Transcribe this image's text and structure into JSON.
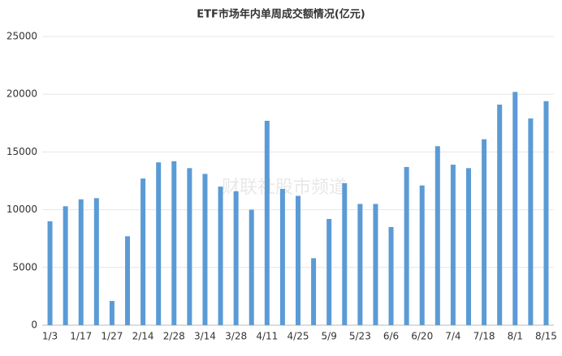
{
  "chart_data": {
    "type": "bar",
    "title": "ETF市场年内单周成交额情况(亿元)",
    "watermark": "财联社股市频道",
    "categories": [
      "1/3",
      null,
      "1/17",
      null,
      "1/27",
      null,
      "2/14",
      null,
      "2/28",
      null,
      "3/14",
      null,
      "3/28",
      null,
      "4/11",
      null,
      "4/25",
      null,
      "5/9",
      null,
      "5/23",
      null,
      "6/6",
      null,
      "6/20",
      null,
      "7/4",
      null,
      "7/18",
      null,
      "8/1",
      null,
      "8/15"
    ],
    "values": [
      9000,
      10300,
      10900,
      11000,
      2100,
      7700,
      12700,
      14100,
      14200,
      13600,
      13100,
      12000,
      11600,
      10000,
      17700,
      11800,
      11200,
      5800,
      9200,
      12300,
      10500,
      10500,
      8500,
      13700,
      12100,
      15500,
      13900,
      13600,
      16100,
      19100,
      20200,
      17900,
      19400
    ],
    "color": "#5b9bd5",
    "ylim": [
      0,
      25000
    ],
    "yticks": [
      0,
      5000,
      10000,
      15000,
      20000,
      25000
    ],
    "grid": true
  }
}
